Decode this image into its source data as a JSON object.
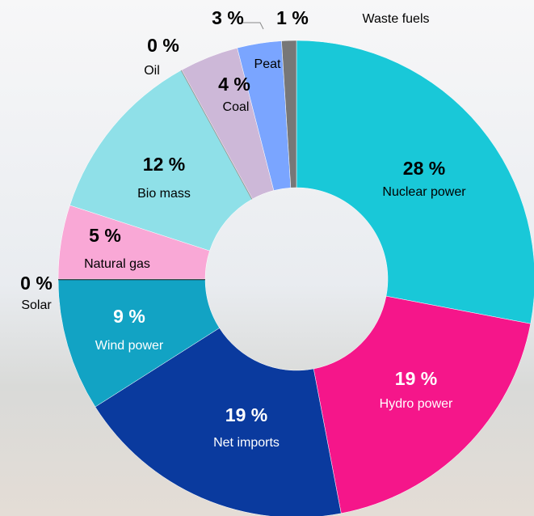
{
  "chart_data": {
    "type": "donut",
    "categories": [
      "Nuclear power",
      "Hydro power",
      "Net imports",
      "Wind power",
      "Solar",
      "Natural gas",
      "Bio mass",
      "Oil",
      "Coal",
      "Peat",
      "Waste fuels"
    ],
    "values": [
      28,
      19,
      19,
      9,
      0,
      5,
      12,
      0,
      4,
      3,
      1
    ],
    "value_labels": [
      "28 %",
      "19 %",
      "19 %",
      "9 %",
      "0 %",
      "5 %",
      "12 %",
      "0 %",
      "4 %",
      "3 %",
      "1 %"
    ],
    "colors": [
      "#19c8d8",
      "#f5168a",
      "#0a3a9e",
      "#12a3c4",
      "#111111",
      "#f9a8d6",
      "#8fe0e8",
      "#999999",
      "#cdb8d8",
      "#7aa5ff",
      "#777777"
    ]
  }
}
